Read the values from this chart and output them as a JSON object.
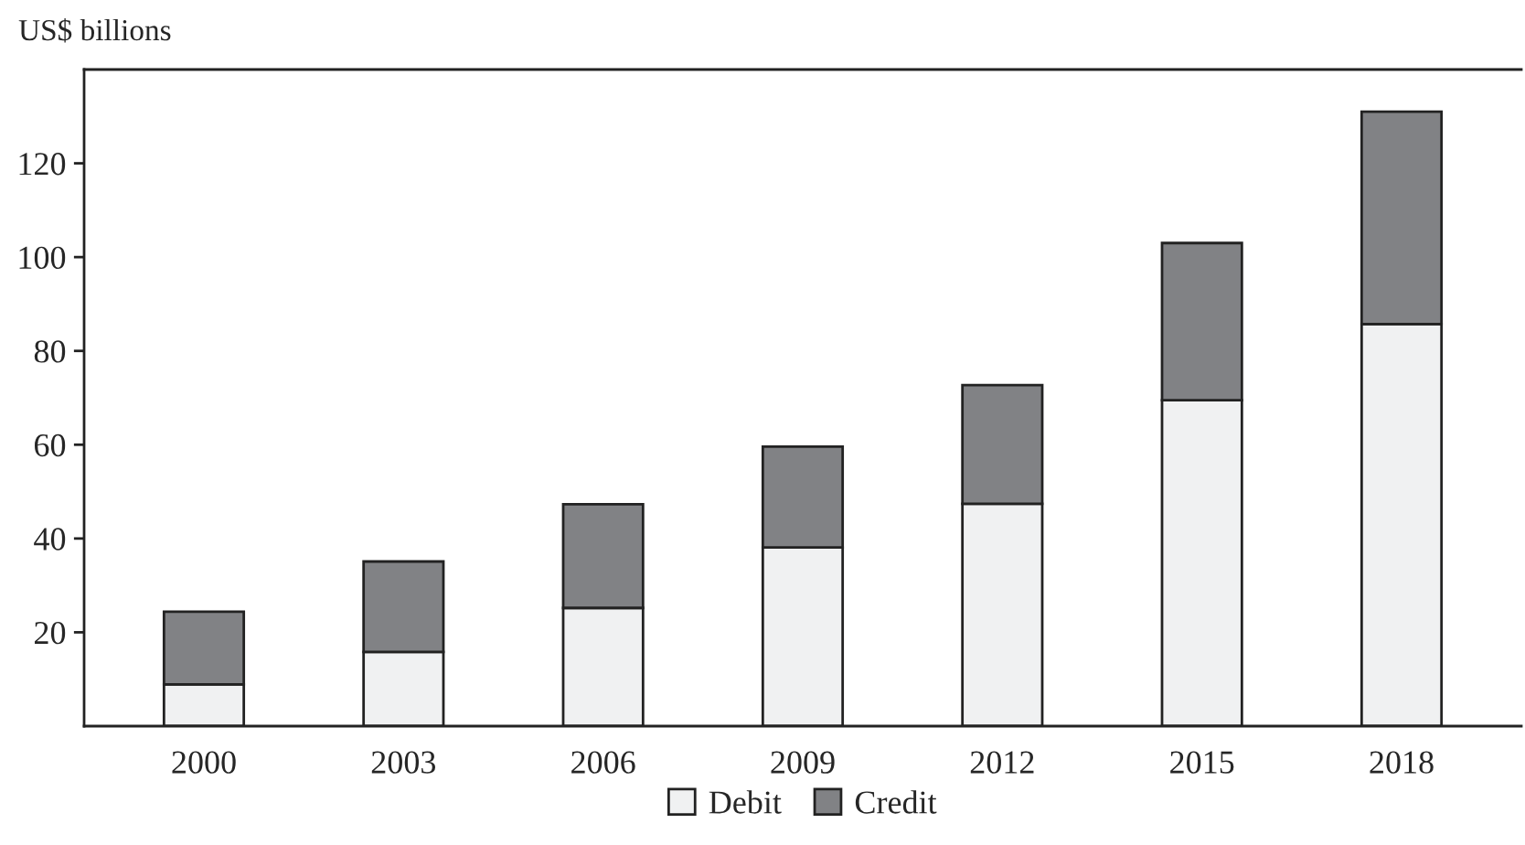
{
  "chart_data": {
    "type": "bar",
    "stacked": true,
    "ylabel": "US$ billions",
    "categories": [
      "2000",
      "2003",
      "2006",
      "2009",
      "2012",
      "2015",
      "2018"
    ],
    "series": [
      {
        "name": "Debit",
        "color": "#f0f1f2",
        "values": [
          8.9,
          15.8,
          25.2,
          38.1,
          47.4,
          69.5,
          85.7
        ]
      },
      {
        "name": "Credit",
        "color": "#818285",
        "values": [
          15.5,
          19.3,
          22.1,
          21.5,
          25.3,
          33.5,
          45.3
        ]
      }
    ],
    "ylim": [
      0,
      140
    ],
    "yticks": [
      20,
      40,
      60,
      80,
      100,
      120
    ],
    "grid": false,
    "legend": "bottom"
  }
}
